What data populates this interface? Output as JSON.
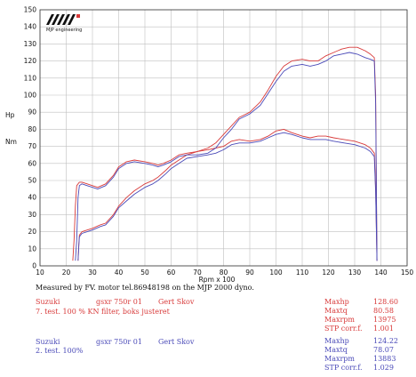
{
  "chart_data": {
    "type": "line",
    "ylabel_lines": [
      "Hp",
      "Nm"
    ],
    "xlabel": "Rpm x 100",
    "xlim": [
      10,
      150
    ],
    "ylim": [
      0,
      150
    ],
    "x_ticks": [
      10,
      20,
      30,
      40,
      50,
      60,
      70,
      80,
      90,
      100,
      110,
      120,
      130,
      140,
      150
    ],
    "y_ticks": [
      0,
      10,
      20,
      30,
      40,
      50,
      60,
      70,
      80,
      90,
      100,
      110,
      120,
      130,
      140,
      150
    ],
    "grid": true,
    "logo_text": "MJP engineering",
    "series": [
      {
        "color": "#d83a3a",
        "x": [
          22.5,
          23.0,
          23.5,
          24,
          25,
          26,
          28,
          30,
          32,
          35,
          38,
          40,
          43,
          46,
          50,
          53,
          55,
          57,
          60,
          63,
          66,
          70,
          74,
          77,
          80,
          83,
          86,
          90,
          94,
          97,
          100,
          103,
          106,
          110,
          113,
          116,
          119,
          122,
          125,
          128,
          131,
          134,
          136,
          137.5,
          138,
          138.5
        ],
        "values": [
          3,
          15,
          35,
          47,
          49,
          49,
          48,
          47,
          46,
          48,
          53,
          58,
          61,
          62,
          61,
          60,
          59,
          60,
          62,
          65,
          66,
          67,
          69,
          72,
          77,
          82,
          87,
          90,
          96,
          103,
          111,
          117,
          120,
          121,
          120,
          120,
          123,
          125,
          127,
          128,
          128,
          126,
          124,
          122,
          100,
          3
        ]
      },
      {
        "color": "#d83a3a",
        "x": [
          24.5,
          24.8,
          25,
          26,
          28,
          30,
          33,
          35,
          38,
          40,
          43,
          46,
          50,
          53,
          55,
          58,
          60,
          63,
          66,
          70,
          74,
          77,
          80,
          83,
          86,
          90,
          94,
          97,
          100,
          103,
          106,
          110,
          113,
          116,
          119,
          122,
          126,
          130,
          134,
          136,
          137.5,
          138,
          138.5
        ],
        "values": [
          3,
          13,
          18,
          20,
          21,
          22,
          24,
          25,
          30,
          35,
          40,
          44,
          48,
          50,
          52,
          56,
          59,
          62,
          65,
          67,
          68,
          69,
          70,
          73,
          74,
          73,
          74,
          76,
          79,
          80,
          78,
          76,
          75,
          76,
          76,
          75,
          74,
          73,
          71,
          69,
          66,
          45,
          3
        ]
      },
      {
        "color": "#4a4ab8",
        "x": [
          23.5,
          24,
          24.5,
          25,
          26,
          28,
          30,
          32,
          35,
          38,
          40,
          43,
          46,
          50,
          53,
          55,
          57,
          60,
          63,
          66,
          70,
          74,
          77,
          80,
          83,
          86,
          90,
          94,
          97,
          100,
          103,
          106,
          110,
          113,
          116,
          119,
          122,
          125,
          128,
          131,
          134,
          136,
          137.5,
          138,
          138.5
        ],
        "values": [
          3,
          15,
          40,
          47,
          48,
          47,
          46,
          45,
          47,
          52,
          57,
          60,
          61,
          60,
          59,
          58,
          59,
          61,
          64,
          65,
          65,
          66,
          69,
          75,
          80,
          86,
          89,
          94,
          101,
          108,
          114,
          117,
          118,
          117,
          118,
          120,
          123,
          124,
          125,
          124,
          122,
          121,
          120,
          95,
          3
        ]
      },
      {
        "color": "#4a4ab8",
        "x": [
          24.5,
          24.8,
          25,
          26,
          28,
          30,
          33,
          35,
          38,
          40,
          43,
          46,
          50,
          53,
          55,
          58,
          60,
          63,
          66,
          70,
          74,
          77,
          80,
          83,
          86,
          90,
          94,
          97,
          100,
          103,
          106,
          110,
          113,
          116,
          119,
          122,
          126,
          130,
          134,
          136,
          137.5,
          138,
          138.5
        ],
        "values": [
          3,
          12,
          17,
          19,
          20,
          21,
          23,
          24,
          29,
          34,
          38,
          42,
          46,
          48,
          50,
          54,
          57,
          60,
          63,
          64,
          65,
          66,
          68,
          71,
          72,
          72,
          73,
          75,
          77,
          78,
          77,
          75,
          74,
          74,
          74,
          73,
          72,
          71,
          69,
          67,
          64,
          43,
          3
        ]
      }
    ]
  },
  "footer": {
    "measured": "Measured by FV. motor tel.86948198 on the MJP 2000 dyno.",
    "run1": {
      "make": "Suzuki",
      "model": "gsxr 750r  01",
      "owner": "Gert Skov",
      "test": "7. test.  100 %   KN filter, boks justeret",
      "labels": [
        "Maxhp",
        "Maxtq",
        "Maxrpm",
        "STP corr.f."
      ],
      "values": [
        "128.60",
        "80.58",
        "13975",
        "1.001"
      ]
    },
    "run2": {
      "make": "Suzuki",
      "model": "gsxr 750r  01",
      "owner": "Gert Skov",
      "test": "2. test.  100%",
      "labels": [
        "Maxhp",
        "Maxtq",
        "Maxrpm",
        "STP corr.f."
      ],
      "values": [
        "124.22",
        "78.07",
        "13883",
        "1.029"
      ]
    }
  }
}
